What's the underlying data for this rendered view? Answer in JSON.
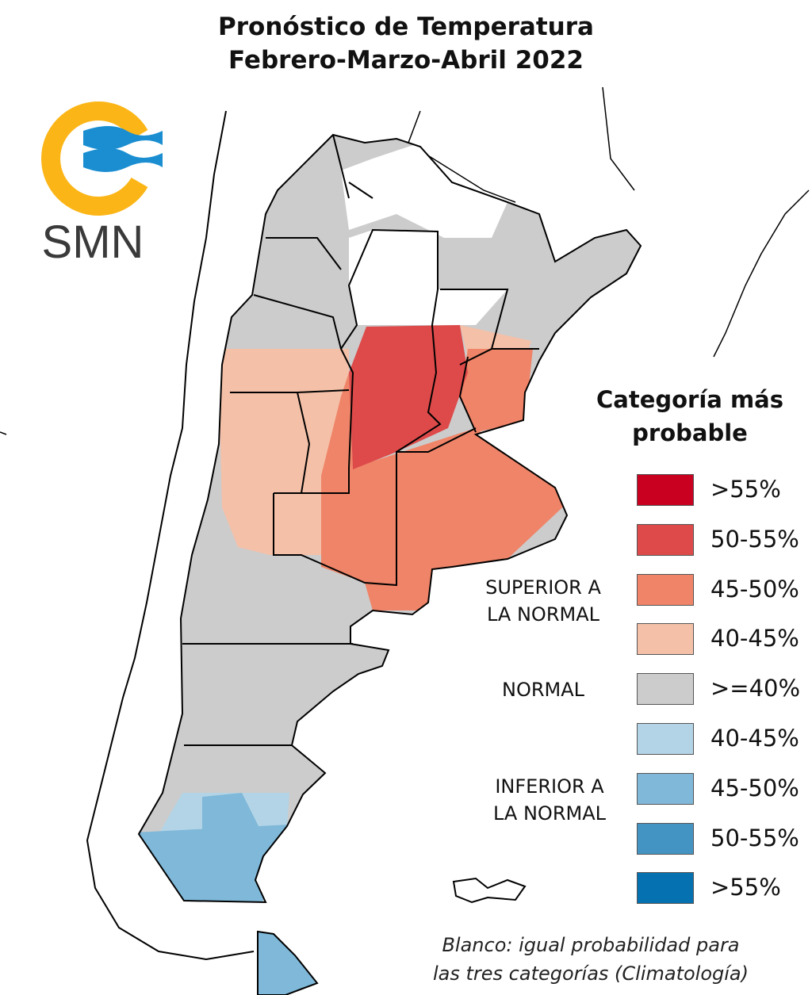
{
  "title_line1": "Pronóstico de Temperatura",
  "title_line2": "Febrero-Marzo-Abril 2022",
  "logo": {
    "text": "SMN",
    "ring_color": "#fbb516",
    "wave_color": "#1a8ed1"
  },
  "legend": {
    "title_line1": "Categoría más",
    "title_line2": "probable",
    "groups": [
      {
        "label_line1": "SUPERIOR A",
        "label_line2": "LA NORMAL"
      },
      {
        "label_line1": "NORMAL",
        "label_line2": ""
      },
      {
        "label_line1": "INFERIOR A",
        "label_line2": "LA NORMAL"
      }
    ],
    "items": [
      {
        "label": ">55%",
        "color": "#ca0020"
      },
      {
        "label": "50-55%",
        "color": "#de4a4a"
      },
      {
        "label": "45-50%",
        "color": "#ef8468"
      },
      {
        "label": "40-45%",
        "color": "#f4c0a8"
      },
      {
        "label": ">=40%",
        "color": "#cccccc"
      },
      {
        "label": "40-45%",
        "color": "#b3d4e6"
      },
      {
        "label": "45-50%",
        "color": "#7fb8d8"
      },
      {
        "label": "50-55%",
        "color": "#4393c3"
      },
      {
        "label": ">55%",
        "color": "#0571b0"
      }
    ]
  },
  "note_line1": "Blanco: igual probabilidad para",
  "note_line2": "las tres categorías (Climatología)"
}
